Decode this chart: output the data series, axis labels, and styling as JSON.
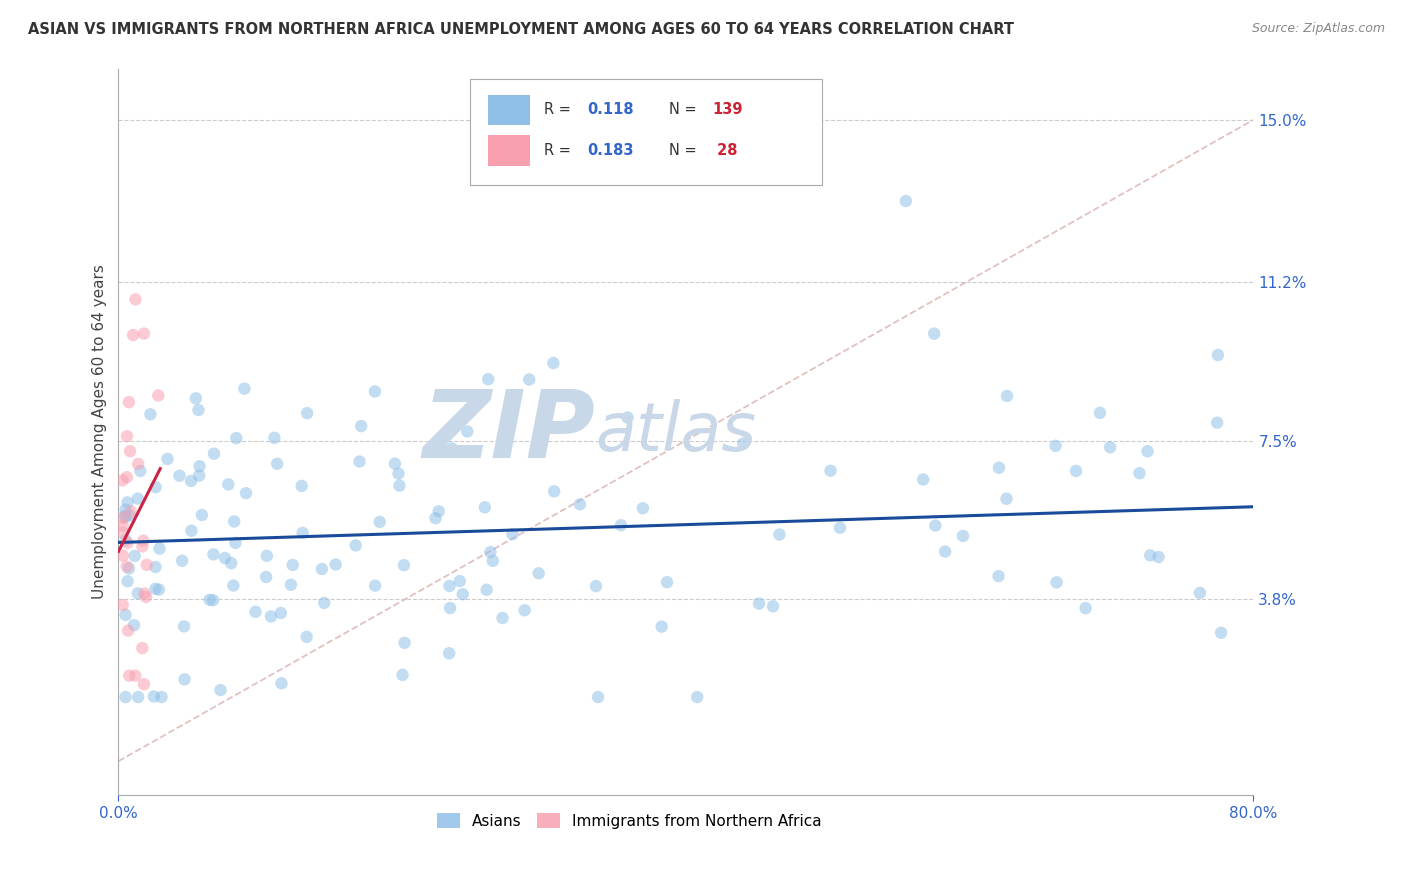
{
  "title": "ASIAN VS IMMIGRANTS FROM NORTHERN AFRICA UNEMPLOYMENT AMONG AGES 60 TO 64 YEARS CORRELATION CHART",
  "source": "Source: ZipAtlas.com",
  "ylabel": "Unemployment Among Ages 60 to 64 years",
  "xlim": [
    0.0,
    0.8
  ],
  "ylim": [
    0.0,
    0.16
  ],
  "ytick_labels_right": [
    "3.8%",
    "7.5%",
    "11.2%",
    "15.0%"
  ],
  "ytick_positions_right": [
    0.038,
    0.075,
    0.112,
    0.15
  ],
  "watermark": "ZIPAtlas",
  "watermark_color": "#C8D8E8",
  "background_color": "#FFFFFF",
  "asian_color": "#90C0E8",
  "africa_color": "#F8A0B0",
  "trend_asian_color": "#1A4A9A",
  "trend_africa_color": "#CC2244",
  "diag_line_color": "#DDBBBB",
  "R_asian": 0.118,
  "N_asian": 139,
  "R_africa": 0.183,
  "N_africa": 28,
  "marker_size": 80,
  "marker_alpha": 0.55
}
